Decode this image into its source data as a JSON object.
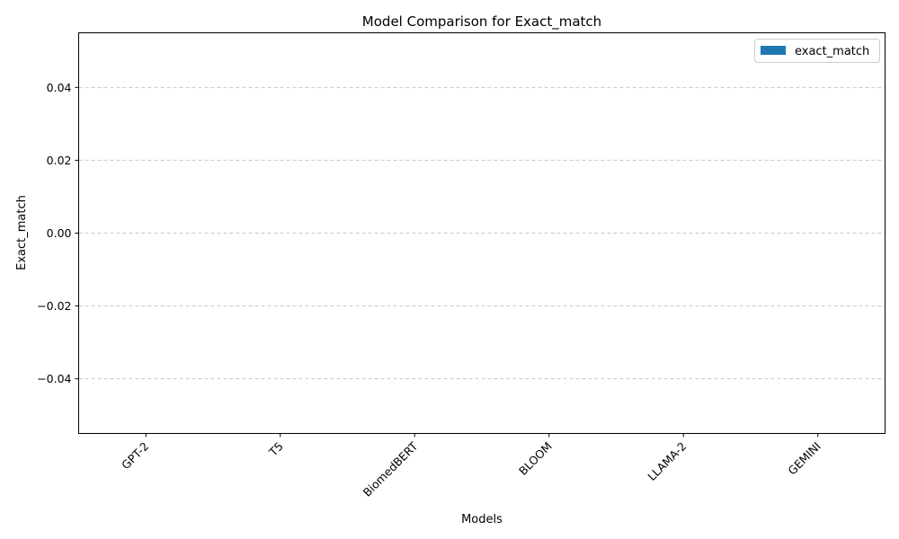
{
  "chart_data": {
    "type": "bar",
    "title": "Model Comparison for Exact_match",
    "xlabel": "Models",
    "ylabel": "Exact_match",
    "categories": [
      "GPT-2",
      "T5",
      "BiomedBERT",
      "BLOOM",
      "LLAMA-2",
      "GEMINI"
    ],
    "series": [
      {
        "name": "exact_match",
        "values": [
          0,
          0,
          0,
          0,
          0,
          0
        ],
        "color": "#1f77b4"
      }
    ],
    "ylim": [
      -0.055,
      0.055
    ],
    "yticks": [
      -0.04,
      -0.02,
      0.0,
      0.02,
      0.04
    ],
    "ytick_labels": [
      "−0.04",
      "−0.02",
      "0.00",
      "0.02",
      "0.04"
    ],
    "grid": "y, dashed",
    "legend_position": "top-right",
    "xtick_rotation": 45
  }
}
